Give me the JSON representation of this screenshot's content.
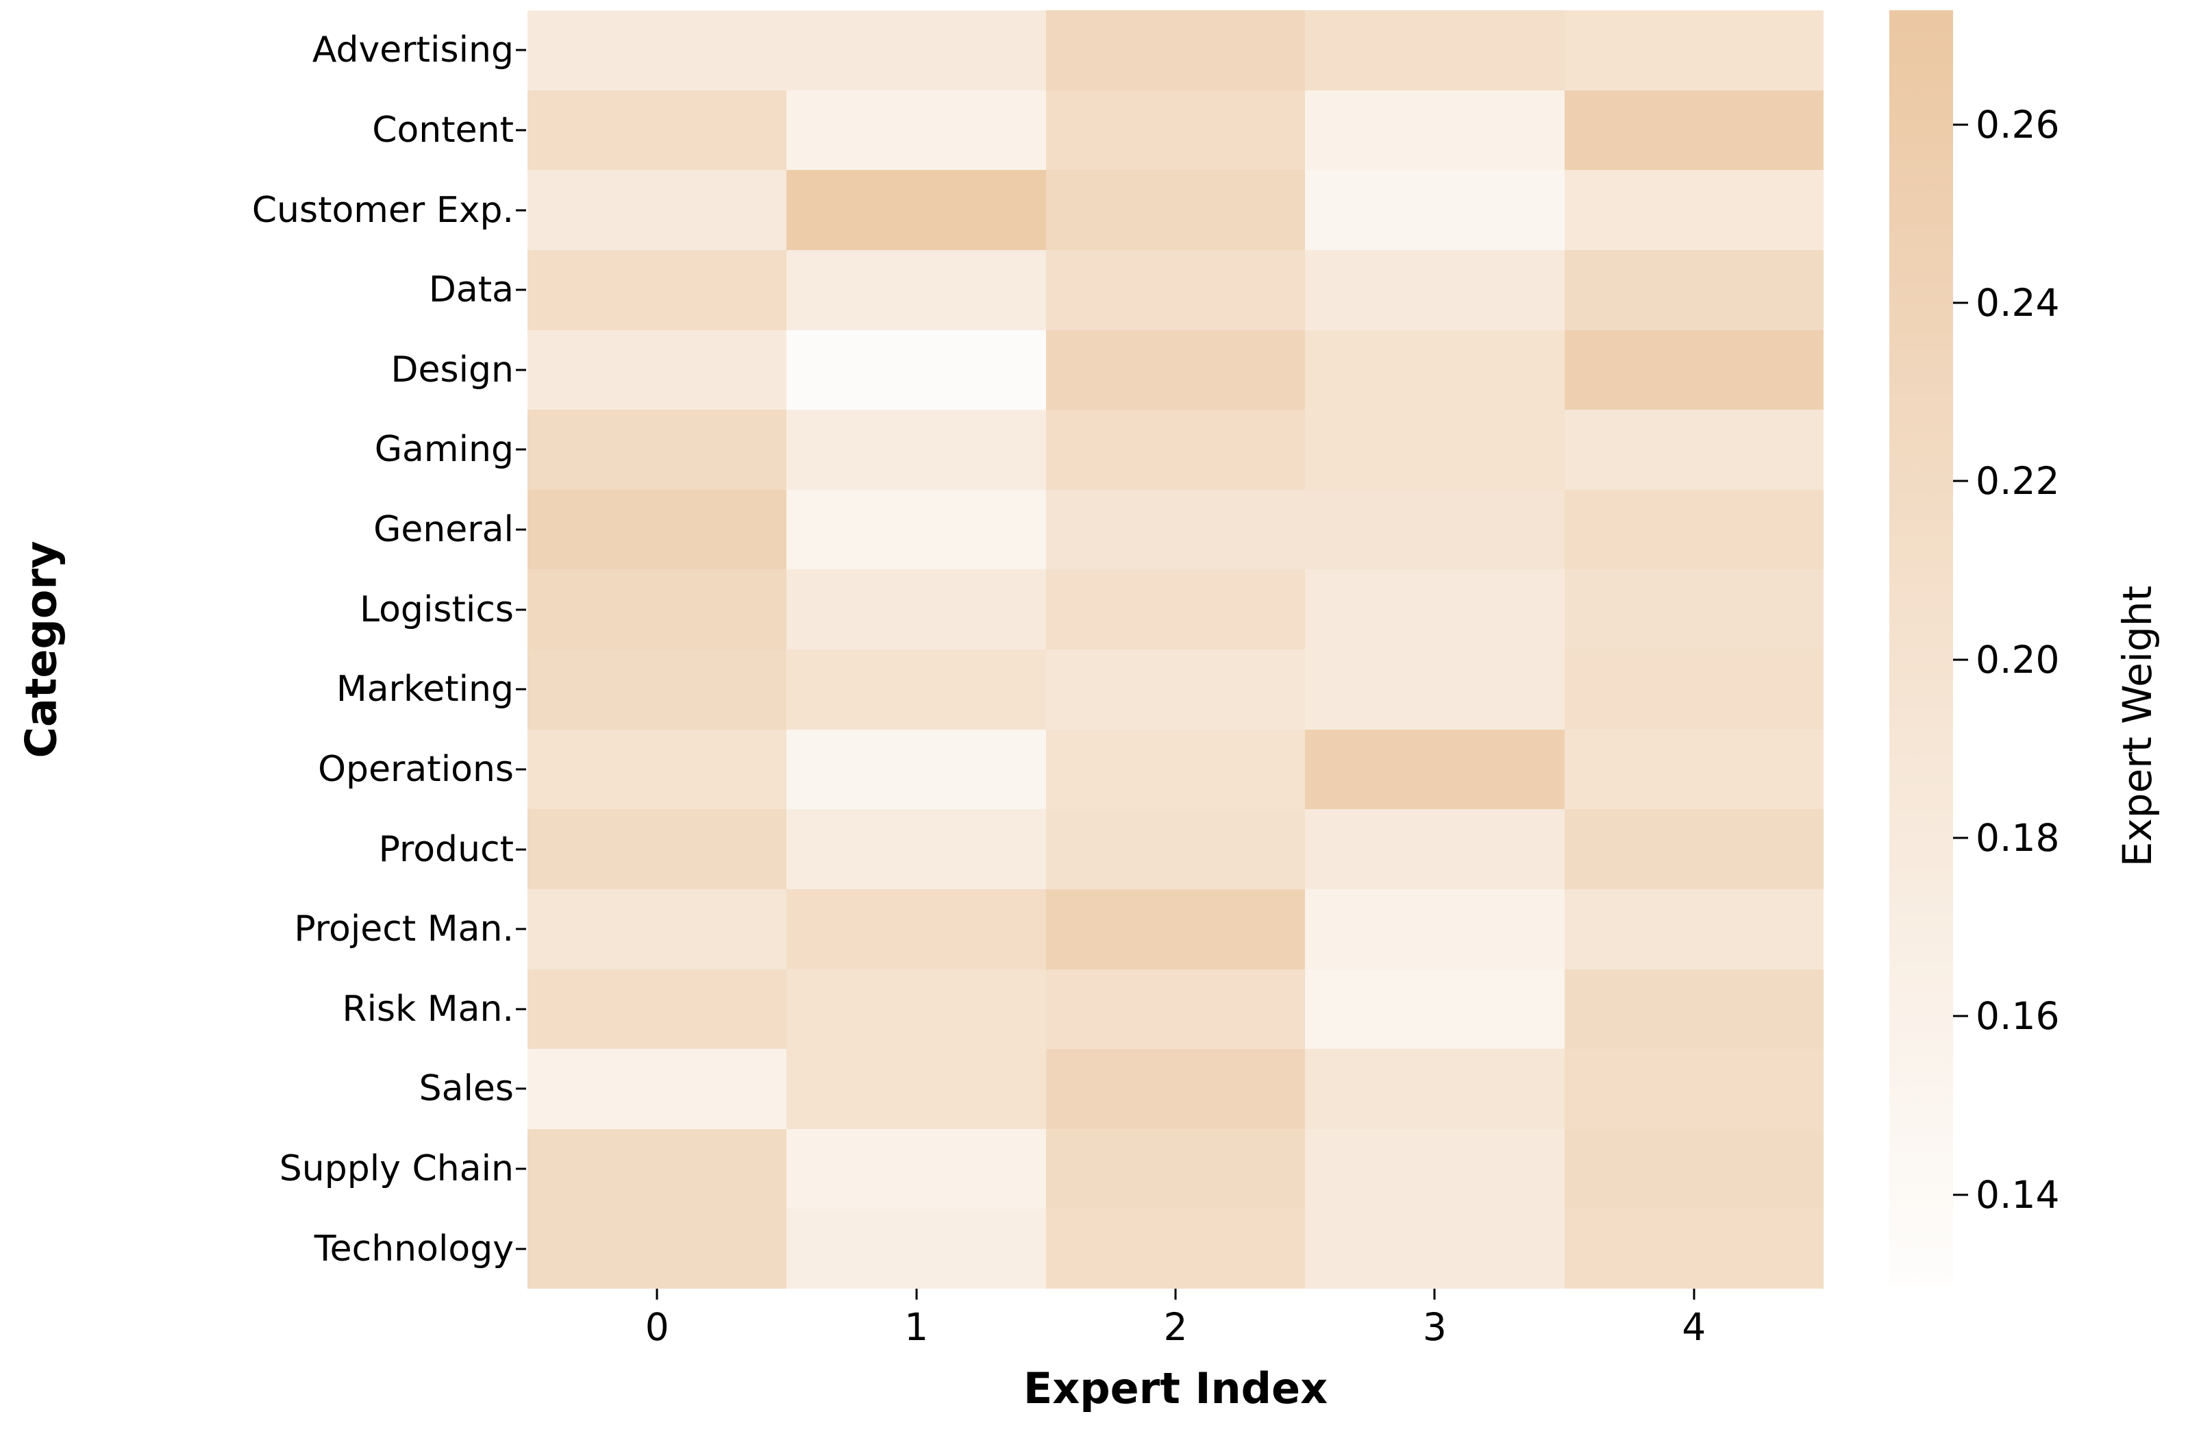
{
  "chart_data": {
    "type": "heatmap",
    "xlabel": "Expert Index",
    "ylabel": "Category",
    "colorbar_label": "Expert Weight",
    "x_ticklabels": [
      "0",
      "1",
      "2",
      "3",
      "4"
    ],
    "categories": [
      "Advertising",
      "Content",
      "Customer Exp.",
      "Data",
      "Design",
      "Gaming",
      "General",
      "Logistics",
      "Marketing",
      "Operations",
      "Product",
      "Project Man.",
      "Risk Man.",
      "Sales",
      "Supply Chain",
      "Technology"
    ],
    "series": [
      {
        "name": "Advertising",
        "values": [
          0.18,
          0.18,
          0.23,
          0.21,
          0.2
        ]
      },
      {
        "name": "Content",
        "values": [
          0.215,
          0.16,
          0.215,
          0.16,
          0.25
        ]
      },
      {
        "name": "Customer Exp.",
        "values": [
          0.18,
          0.26,
          0.225,
          0.15,
          0.185
        ]
      },
      {
        "name": "Data",
        "values": [
          0.215,
          0.175,
          0.21,
          0.18,
          0.22
        ]
      },
      {
        "name": "Design",
        "values": [
          0.18,
          0.135,
          0.235,
          0.2,
          0.25
        ]
      },
      {
        "name": "Gaming",
        "values": [
          0.22,
          0.175,
          0.215,
          0.2,
          0.19
        ]
      },
      {
        "name": "General",
        "values": [
          0.24,
          0.155,
          0.195,
          0.195,
          0.215
        ]
      },
      {
        "name": "Logistics",
        "values": [
          0.225,
          0.18,
          0.21,
          0.18,
          0.205
        ]
      },
      {
        "name": "Marketing",
        "values": [
          0.22,
          0.2,
          0.19,
          0.18,
          0.21
        ]
      },
      {
        "name": "Operations",
        "values": [
          0.2,
          0.15,
          0.2,
          0.25,
          0.2
        ]
      },
      {
        "name": "Product",
        "values": [
          0.22,
          0.175,
          0.205,
          0.18,
          0.22
        ]
      },
      {
        "name": "Project Man.",
        "values": [
          0.19,
          0.215,
          0.245,
          0.16,
          0.19
        ]
      },
      {
        "name": "Risk Man.",
        "values": [
          0.215,
          0.2,
          0.21,
          0.155,
          0.22
        ]
      },
      {
        "name": "Sales",
        "values": [
          0.16,
          0.2,
          0.235,
          0.19,
          0.215
        ]
      },
      {
        "name": "Supply Chain",
        "values": [
          0.22,
          0.16,
          0.22,
          0.18,
          0.22
        ]
      },
      {
        "name": "Technology",
        "values": [
          0.22,
          0.17,
          0.215,
          0.18,
          0.215
        ]
      }
    ],
    "colorbar_ticks": [
      "0.26",
      "0.24",
      "0.22",
      "0.20",
      "0.18",
      "0.16",
      "0.14"
    ],
    "vmin": 0.13,
    "vmax": 0.2728,
    "grid": false,
    "legend_position": "right-colorbar",
    "colors": {
      "low": "#fefdfc",
      "high": "#ebc7a2"
    }
  }
}
